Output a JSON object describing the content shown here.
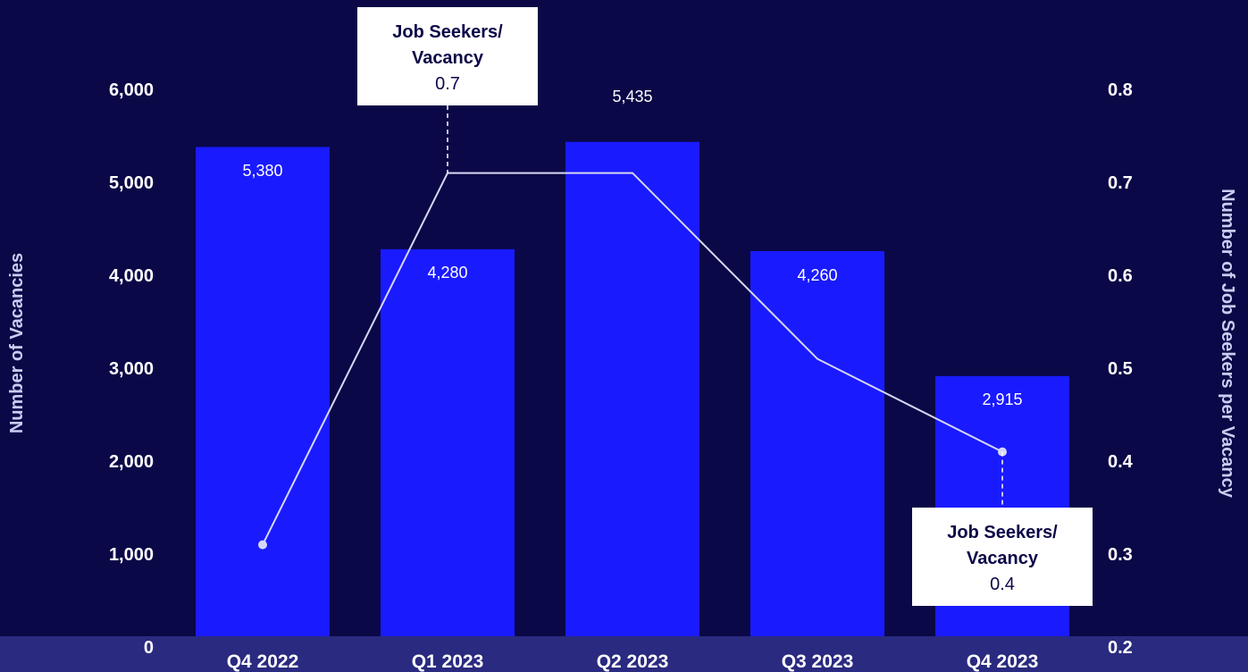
{
  "chart_data": {
    "type": "bar",
    "categories": [
      "Q4 2022",
      "Q1 2023",
      "Q2 2023",
      "Q3 2023",
      "Q4 2023"
    ],
    "series": [
      {
        "kind": "bar",
        "axis": "left",
        "values": [
          5380,
          4280,
          5435,
          4260,
          2915
        ],
        "color": "#1a1aff"
      },
      {
        "kind": "line",
        "axis": "right",
        "values": [
          0.31,
          0.71,
          0.71,
          0.51,
          0.41
        ],
        "color": "#d5d8f5"
      }
    ],
    "bar_labels": [
      "5,380",
      "4,280",
      "5,435",
      "4,260",
      "2,915"
    ],
    "ylabel": "Number of Vacancies",
    "ylim": [
      0,
      6000
    ],
    "yticks": [
      0,
      1000,
      2000,
      3000,
      4000,
      5000,
      6000
    ],
    "ytick_labels": [
      "0",
      "1,000",
      "2,000",
      "3,000",
      "4,000",
      "5,000",
      "6,000"
    ],
    "y2label": "Number of Job Seekers per Vacancy",
    "y2lim": [
      0.2,
      0.8
    ],
    "y2ticks": [
      0.2,
      0.3,
      0.4,
      0.5,
      0.6,
      0.7,
      0.8
    ],
    "y2tick_labels": [
      "0.2",
      "0.3",
      "0.4",
      "0.5",
      "0.6",
      "0.7",
      "0.8"
    ],
    "annotations": [
      {
        "category_index": 1,
        "line1": "Job Seekers/",
        "line2": "Vacancy",
        "value": "0.7",
        "placement": "above"
      },
      {
        "category_index": 4,
        "line1": "Job Seekers/",
        "line2": "Vacancy",
        "value": "0.4",
        "placement": "below"
      }
    ],
    "colors": {
      "background": "#0b0847",
      "axis_band": "#2a2a80"
    },
    "grid": false,
    "legend": "none"
  }
}
